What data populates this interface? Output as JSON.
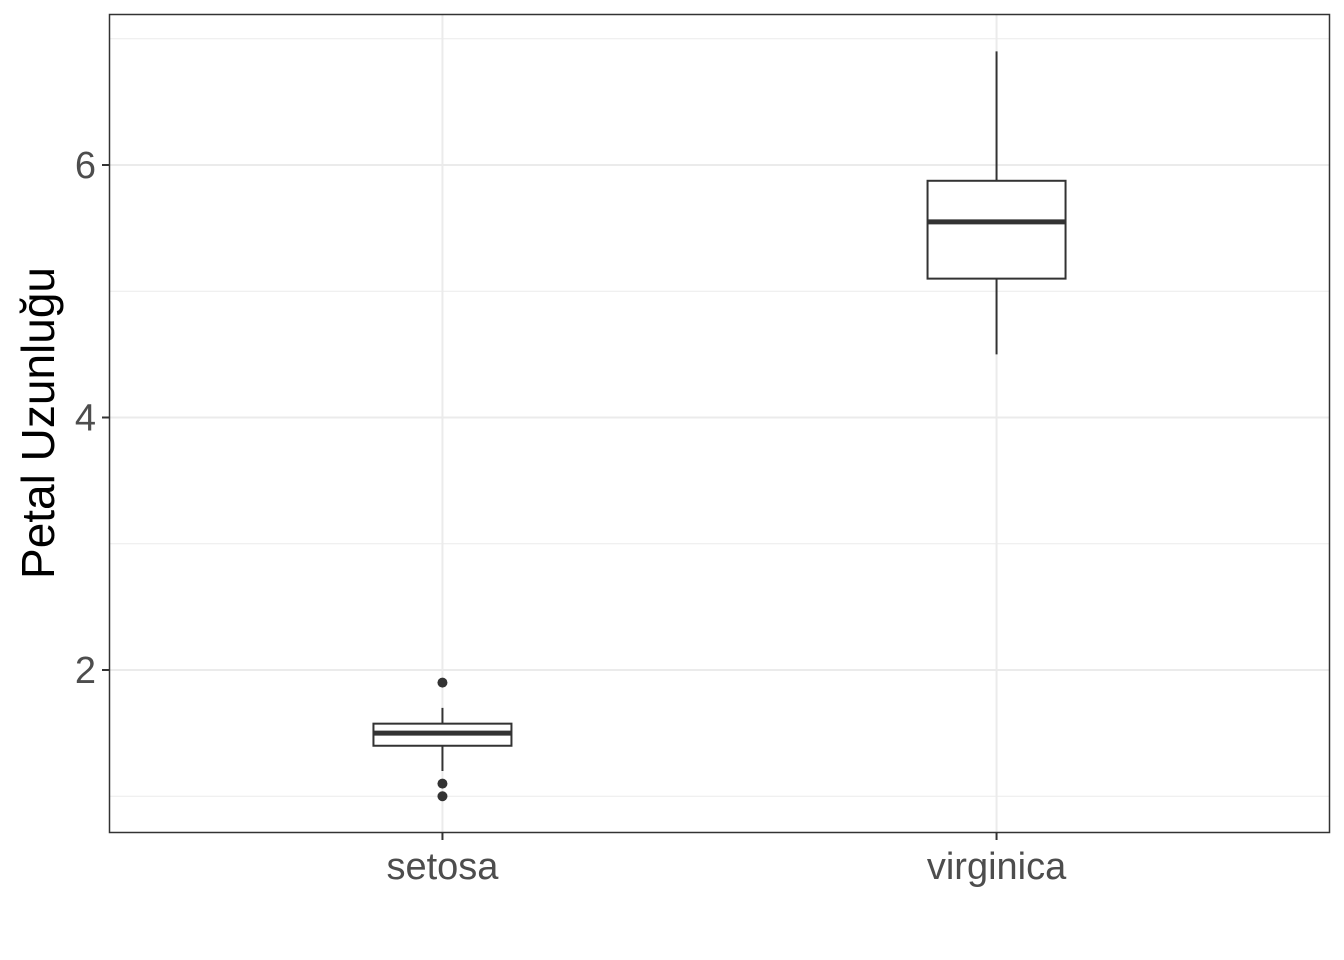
{
  "chart_data": {
    "type": "boxplot",
    "title": "",
    "xlabel": "",
    "ylabel": "Petal Uzunluğu",
    "categories": [
      "setosa",
      "virginica"
    ],
    "ylim": [
      0.7,
      7.2
    ],
    "y_ticks": [
      2,
      4,
      6
    ],
    "y_minor_ticks": [
      1,
      3,
      5,
      7
    ],
    "grid": true,
    "boxes": [
      {
        "category": "setosa",
        "whisker_low": 1.2,
        "q1": 1.4,
        "median": 1.5,
        "q3": 1.575,
        "whisker_high": 1.7,
        "outliers": [
          1.9,
          1.1,
          1.0
        ]
      },
      {
        "category": "virginica",
        "whisker_low": 4.5,
        "q1": 5.1,
        "median": 5.55,
        "q3": 5.875,
        "whisker_high": 6.9,
        "outliers": []
      }
    ],
    "colors": {
      "box_fill": "#ffffff",
      "box_stroke": "#333333",
      "grid": "#ebebeb",
      "panel_border": "#333333",
      "tick_text": "#4d4d4d"
    }
  }
}
